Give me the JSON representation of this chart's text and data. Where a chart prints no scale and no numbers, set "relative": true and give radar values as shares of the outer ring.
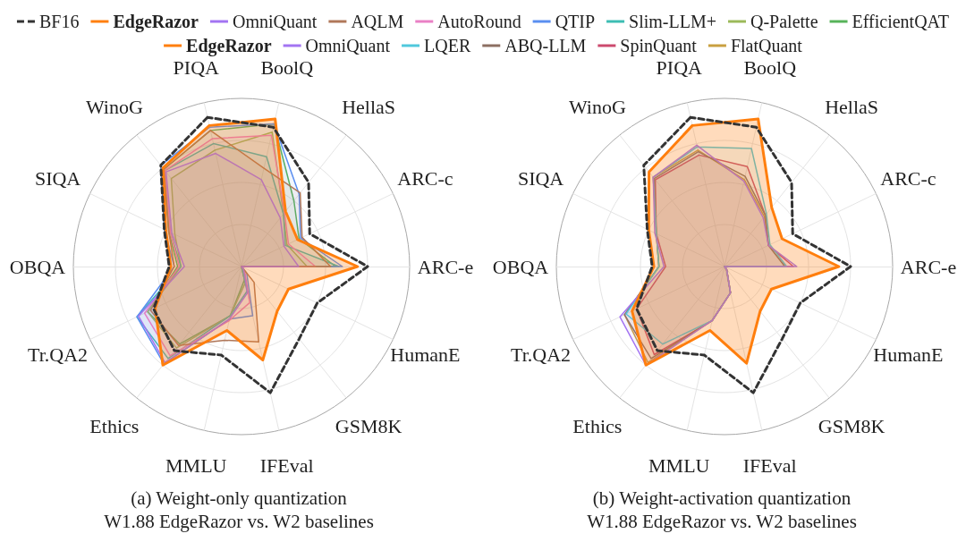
{
  "chart_data": [
    {
      "type": "radar",
      "title": "(a) Weight-only quantization",
      "subtitle": "W1.88 EdgeRazor vs. W2 baselines",
      "categories": [
        "PIQA",
        "BoolQ",
        "HellaS",
        "ARC-c",
        "ARC-e",
        "HumanE",
        "GSM8K",
        "IFEval",
        "MMLU",
        "Ethics",
        "Tr.QA2",
        "OBQA",
        "SIQA",
        "WinoG"
      ],
      "relative": true,
      "grid": true,
      "legend": "top",
      "marker": "none",
      "line_style": "solid",
      "series": [
        {
          "name": "BF16",
          "line_style": "dashed",
          "color": "#333333",
          "values": [
            0.91,
            0.85,
            0.64,
            0.45,
            0.75,
            0.5,
            0.55,
            0.77,
            0.54,
            0.64,
            0.58,
            0.43,
            0.51,
            0.77
          ]
        },
        {
          "name": "EdgeRazor",
          "color": "#ff7f0e",
          "values": [
            0.86,
            0.9,
            0.42,
            0.37,
            0.69,
            0.31,
            0.34,
            0.57,
            0.39,
            0.75,
            0.57,
            0.42,
            0.5,
            0.75
          ]
        },
        {
          "name": "OmniQuant",
          "color": "#a374f2",
          "values": [
            0.69,
            0.53,
            0.37,
            0.28,
            0.34,
            0,
            0.02,
            0.16,
            0.32,
            0.73,
            0.68,
            0.34,
            0.46,
            0.72
          ]
        },
        {
          "name": "AQLM",
          "color": "#b0785a",
          "values": [
            0.83,
            0.6,
            0.56,
            0.4,
            0.53,
            0,
            0.12,
            0.46,
            0.45,
            0.6,
            0.6,
            0.4,
            0.48,
            0.74
          ]
        },
        {
          "name": "AutoRound",
          "color": "#e980c5",
          "values": [
            0.78,
            0.8,
            0.41,
            0.31,
            0.44,
            0,
            0.03,
            0.22,
            0.33,
            0.68,
            0.64,
            0.37,
            0.47,
            0.73
          ]
        },
        {
          "name": "QTIP",
          "color": "#5a8ef0",
          "values": [
            0.85,
            0.87,
            0.55,
            0.39,
            0.6,
            0,
            0.05,
            0.3,
            0.32,
            0.74,
            0.69,
            0.4,
            0.51,
            0.77
          ]
        },
        {
          "name": "Slim-LLM+",
          "color": "#3dbdb3",
          "values": [
            0.75,
            0.67,
            0.4,
            0.29,
            0.58,
            0,
            0,
            0.15,
            0.3,
            0.7,
            0.69,
            0.36,
            0.47,
            0.73
          ]
        },
        {
          "name": "Q-Palette",
          "color": "#9cba5a",
          "values": [
            0.71,
            0.82,
            0.4,
            0.3,
            0.39,
            0,
            0,
            0.1,
            0.3,
            0.62,
            0.62,
            0.36,
            0.44,
            0.67
          ]
        },
        {
          "name": "EfficientQAT",
          "color": "#57b35a",
          "values": [
            0.83,
            0.87,
            0.5,
            0.38,
            0.56,
            0,
            0,
            0.08,
            0.3,
            0.59,
            0.62,
            0.38,
            0.48,
            0.74
          ]
        }
      ]
    },
    {
      "type": "radar",
      "title": "(b) Weight-activation quantization",
      "subtitle": "W1.88 EdgeRazor vs. W2 baselines",
      "categories": [
        "PIQA",
        "BoolQ",
        "HellaS",
        "ARC-c",
        "ARC-e",
        "HumanE",
        "GSM8K",
        "IFEval",
        "MMLU",
        "Ethics",
        "Tr.QA2",
        "OBQA",
        "SIQA",
        "WinoG"
      ],
      "relative": true,
      "grid": true,
      "legend": "top",
      "marker": "none",
      "line_style": "solid",
      "series": [
        {
          "line_style": "dashed",
          "color": "#333333",
          "values": [
            0.91,
            0.85,
            0.64,
            0.45,
            0.75,
            0.5,
            0.55,
            0.77,
            0.54,
            0.64,
            0.58,
            0.43,
            0.51,
            0.77
          ]
        },
        {
          "name": "EdgeRazor",
          "color": "#ff7f0e",
          "values": [
            0.86,
            0.9,
            0.45,
            0.38,
            0.68,
            0.31,
            0.34,
            0.59,
            0.39,
            0.75,
            0.61,
            0.42,
            0.5,
            0.72
          ]
        },
        {
          "name": "OmniQuant",
          "color": "#a374f2",
          "values": [
            0.74,
            0.52,
            0.37,
            0.29,
            0.43,
            0,
            0.02,
            0.16,
            0.33,
            0.75,
            0.69,
            0.36,
            0.46,
            0.68
          ]
        },
        {
          "name": "LQER",
          "color": "#50c8dc",
          "values": [
            0.73,
            0.72,
            0.4,
            0.3,
            0.37,
            0,
            0.02,
            0.16,
            0.33,
            0.59,
            0.65,
            0.39,
            0.45,
            0.68
          ]
        },
        {
          "name": "ABQ-LLM",
          "color": "#8c6f62",
          "values": [
            0.7,
            0.55,
            0.39,
            0.29,
            0.36,
            0,
            0.02,
            0.16,
            0.33,
            0.7,
            0.66,
            0.39,
            0.45,
            0.67
          ]
        },
        {
          "name": "SpinQuant",
          "color": "#cc4a6e",
          "values": [
            0.68,
            0.61,
            0.39,
            0.29,
            0.41,
            0,
            0.02,
            0.16,
            0.33,
            0.67,
            0.58,
            0.35,
            0.45,
            0.66
          ]
        },
        {
          "name": "FlatQuant",
          "color": "#c9a040",
          "values": [
            0.71,
            0.53,
            0.38,
            0.29,
            0.36,
            0,
            0.02,
            0.16,
            0.33,
            0.73,
            0.66,
            0.39,
            0.45,
            0.68
          ]
        }
      ]
    }
  ]
}
